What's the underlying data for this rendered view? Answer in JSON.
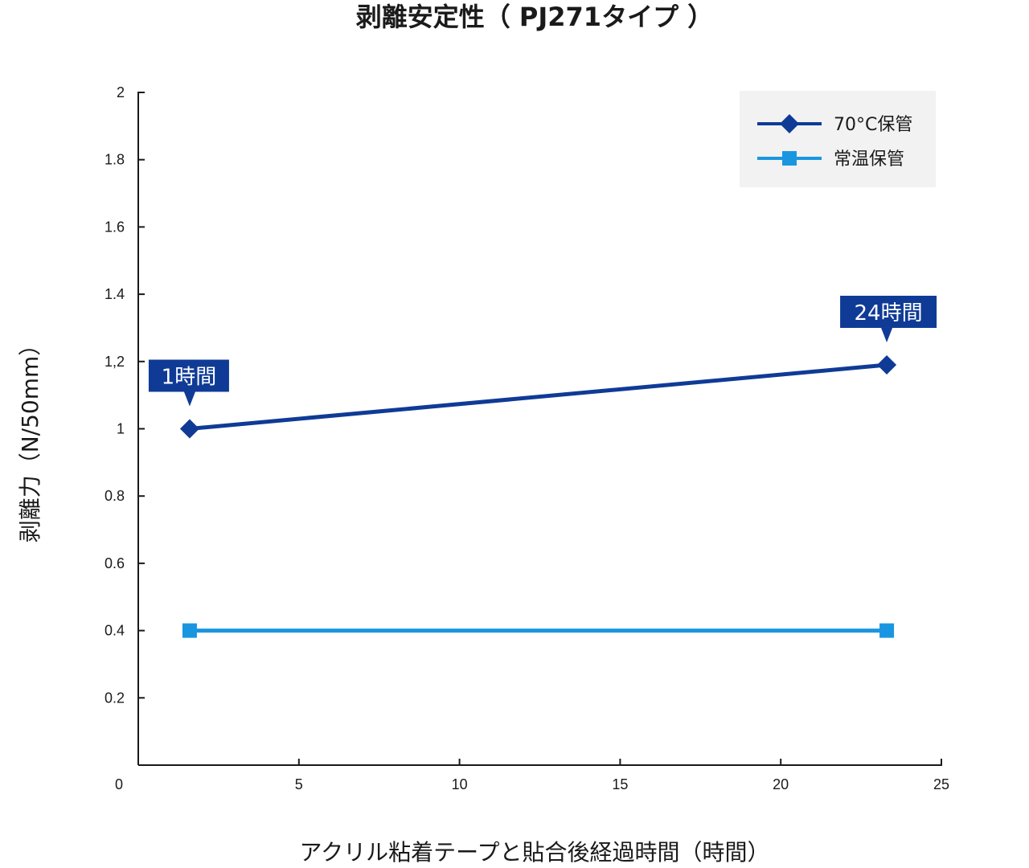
{
  "chart_data": {
    "type": "line",
    "title": "剥離安定性（ PJ271タイプ ）",
    "xlabel": "アクリル粘着テープと貼合後経過時間（時間）",
    "ylabel": "剥離力（N/50mm）",
    "xlim": [
      0,
      25
    ],
    "ylim": [
      0,
      2
    ],
    "x_ticks": [
      {
        "value": 0,
        "label": "0"
      },
      {
        "value": 5,
        "label": "5"
      },
      {
        "value": 10,
        "label": "10"
      },
      {
        "value": 15,
        "label": "15"
      },
      {
        "value": 20,
        "label": "20"
      },
      {
        "value": 25,
        "label": "25"
      }
    ],
    "y_ticks": [
      {
        "value": 0.2,
        "label": "0.2"
      },
      {
        "value": 0.4,
        "label": "0.4"
      },
      {
        "value": 0.6,
        "label": "0.6"
      },
      {
        "value": 0.8,
        "label": "0.8"
      },
      {
        "value": 1.0,
        "label": "1"
      },
      {
        "value": 1.2,
        "label": "1,2"
      },
      {
        "value": 1.4,
        "label": "1.4"
      },
      {
        "value": 1.6,
        "label": "1.6"
      },
      {
        "value": 1.8,
        "label": "1.8"
      },
      {
        "value": 2.0,
        "label": "2"
      }
    ],
    "grid": false,
    "legend_position": "top-right",
    "series": [
      {
        "name": "70°C保管",
        "color": "#0f3b96",
        "marker": "diamond",
        "points": [
          {
            "x": 1.6,
            "y": 1.0
          },
          {
            "x": 23.3,
            "y": 1.19
          }
        ]
      },
      {
        "name": "常温保管",
        "color": "#1a96e0",
        "marker": "square",
        "points": [
          {
            "x": 1.6,
            "y": 0.4
          },
          {
            "x": 23.3,
            "y": 0.4
          }
        ]
      }
    ],
    "annotations": [
      {
        "text": "1時間",
        "x": 1.6,
        "y": 1.0
      },
      {
        "text": "24時間",
        "x": 23.3,
        "y": 1.19
      }
    ]
  },
  "colors": {
    "axis": "#1a1a1a",
    "legend_background": "#f2f2f2",
    "callout_background": "#0f3b96"
  }
}
